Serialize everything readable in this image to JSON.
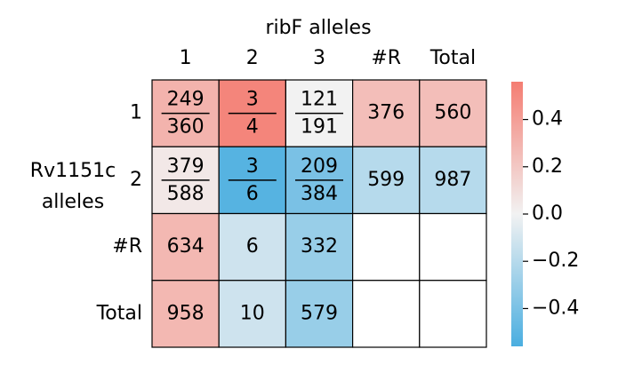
{
  "chart_data": {
    "type": "heatmap",
    "title": "ribF alleles",
    "ylabel": "Rv1151c alleles",
    "x_categories": [
      "1",
      "2",
      "3",
      "#R",
      "Total"
    ],
    "y_categories": [
      "1",
      "2",
      "#R",
      "Total"
    ],
    "numerators": [
      [
        249,
        3,
        121,
        376,
        560
      ],
      [
        379,
        3,
        209,
        599,
        987
      ],
      [
        634,
        6,
        332,
        null,
        null
      ],
      [
        958,
        10,
        579,
        null,
        null
      ]
    ],
    "denominators": [
      [
        360,
        4,
        191,
        null,
        null
      ],
      [
        588,
        6,
        384,
        null,
        null
      ],
      [
        null,
        null,
        null,
        null,
        null
      ],
      [
        null,
        null,
        null,
        null,
        null
      ]
    ],
    "values": [
      [
        0.3,
        0.52,
        0.0,
        0.25,
        0.25
      ],
      [
        0.05,
        -0.52,
        -0.4,
        -0.2,
        -0.2
      ],
      [
        0.28,
        -0.12,
        -0.3,
        null,
        null
      ],
      [
        0.28,
        -0.12,
        -0.3,
        null,
        null
      ]
    ],
    "colors": {
      "negative": "#4aaee0",
      "middle": "#f2f2f2",
      "positive": "#f47d72"
    },
    "vlim": [
      -0.56,
      0.56
    ],
    "vticks": [
      0.4,
      0.2,
      {
        "value": 0.0,
        "label": "0.0"
      },
      {
        "value": -0.2,
        "label": "−0.2"
      },
      {
        "value": -0.4,
        "label": "−0.4"
      }
    ]
  }
}
